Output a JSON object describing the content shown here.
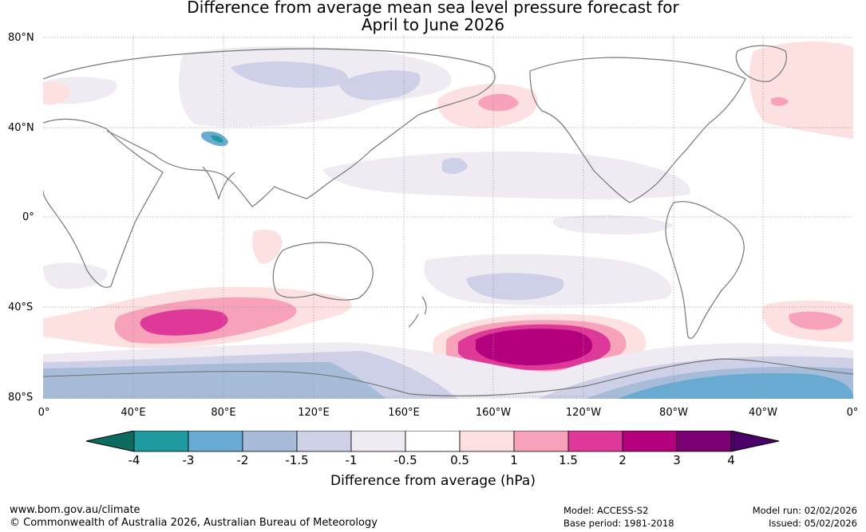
{
  "title": {
    "line1": "Difference from average mean sea level pressure forecast for",
    "line2": "April to June 2026"
  },
  "latitude_labels": [
    "80°N",
    "40°N",
    "0°",
    "40°S",
    "80°S"
  ],
  "longitude_labels": [
    "0°",
    "40°E",
    "80°E",
    "120°E",
    "160°E",
    "160°W",
    "120°W",
    "80°W",
    "40°W",
    "0°"
  ],
  "colorbar": {
    "title": "Difference from average (hPa)",
    "tick_labels": [
      "-4",
      "-3",
      "-2",
      "-1.5",
      "-1",
      "-0.5",
      "0.5",
      "1",
      "1.5",
      "2",
      "3",
      "4"
    ],
    "colors": [
      "#1f9a9e",
      "#69aad2",
      "#a7bcd9",
      "#cdd0e6",
      "#f0eaf3",
      "#ffffff",
      "#fde0e0",
      "#f7a1bb",
      "#de3899",
      "#b5007d",
      "#7b0074"
    ],
    "under_color": "#0a6b5e",
    "over_color": "#4a0066"
  },
  "footer": {
    "website": "www.bom.gov.au/climate",
    "copyright": "© Commonwealth of Australia 2026, Australian Bureau of Meteorology",
    "model": "Model: ACCESS-S2",
    "base_period": "Base period: 1981-2018",
    "model_run": "Model run: 02/02/2026",
    "issued": "Issued: 05/02/2026"
  }
}
